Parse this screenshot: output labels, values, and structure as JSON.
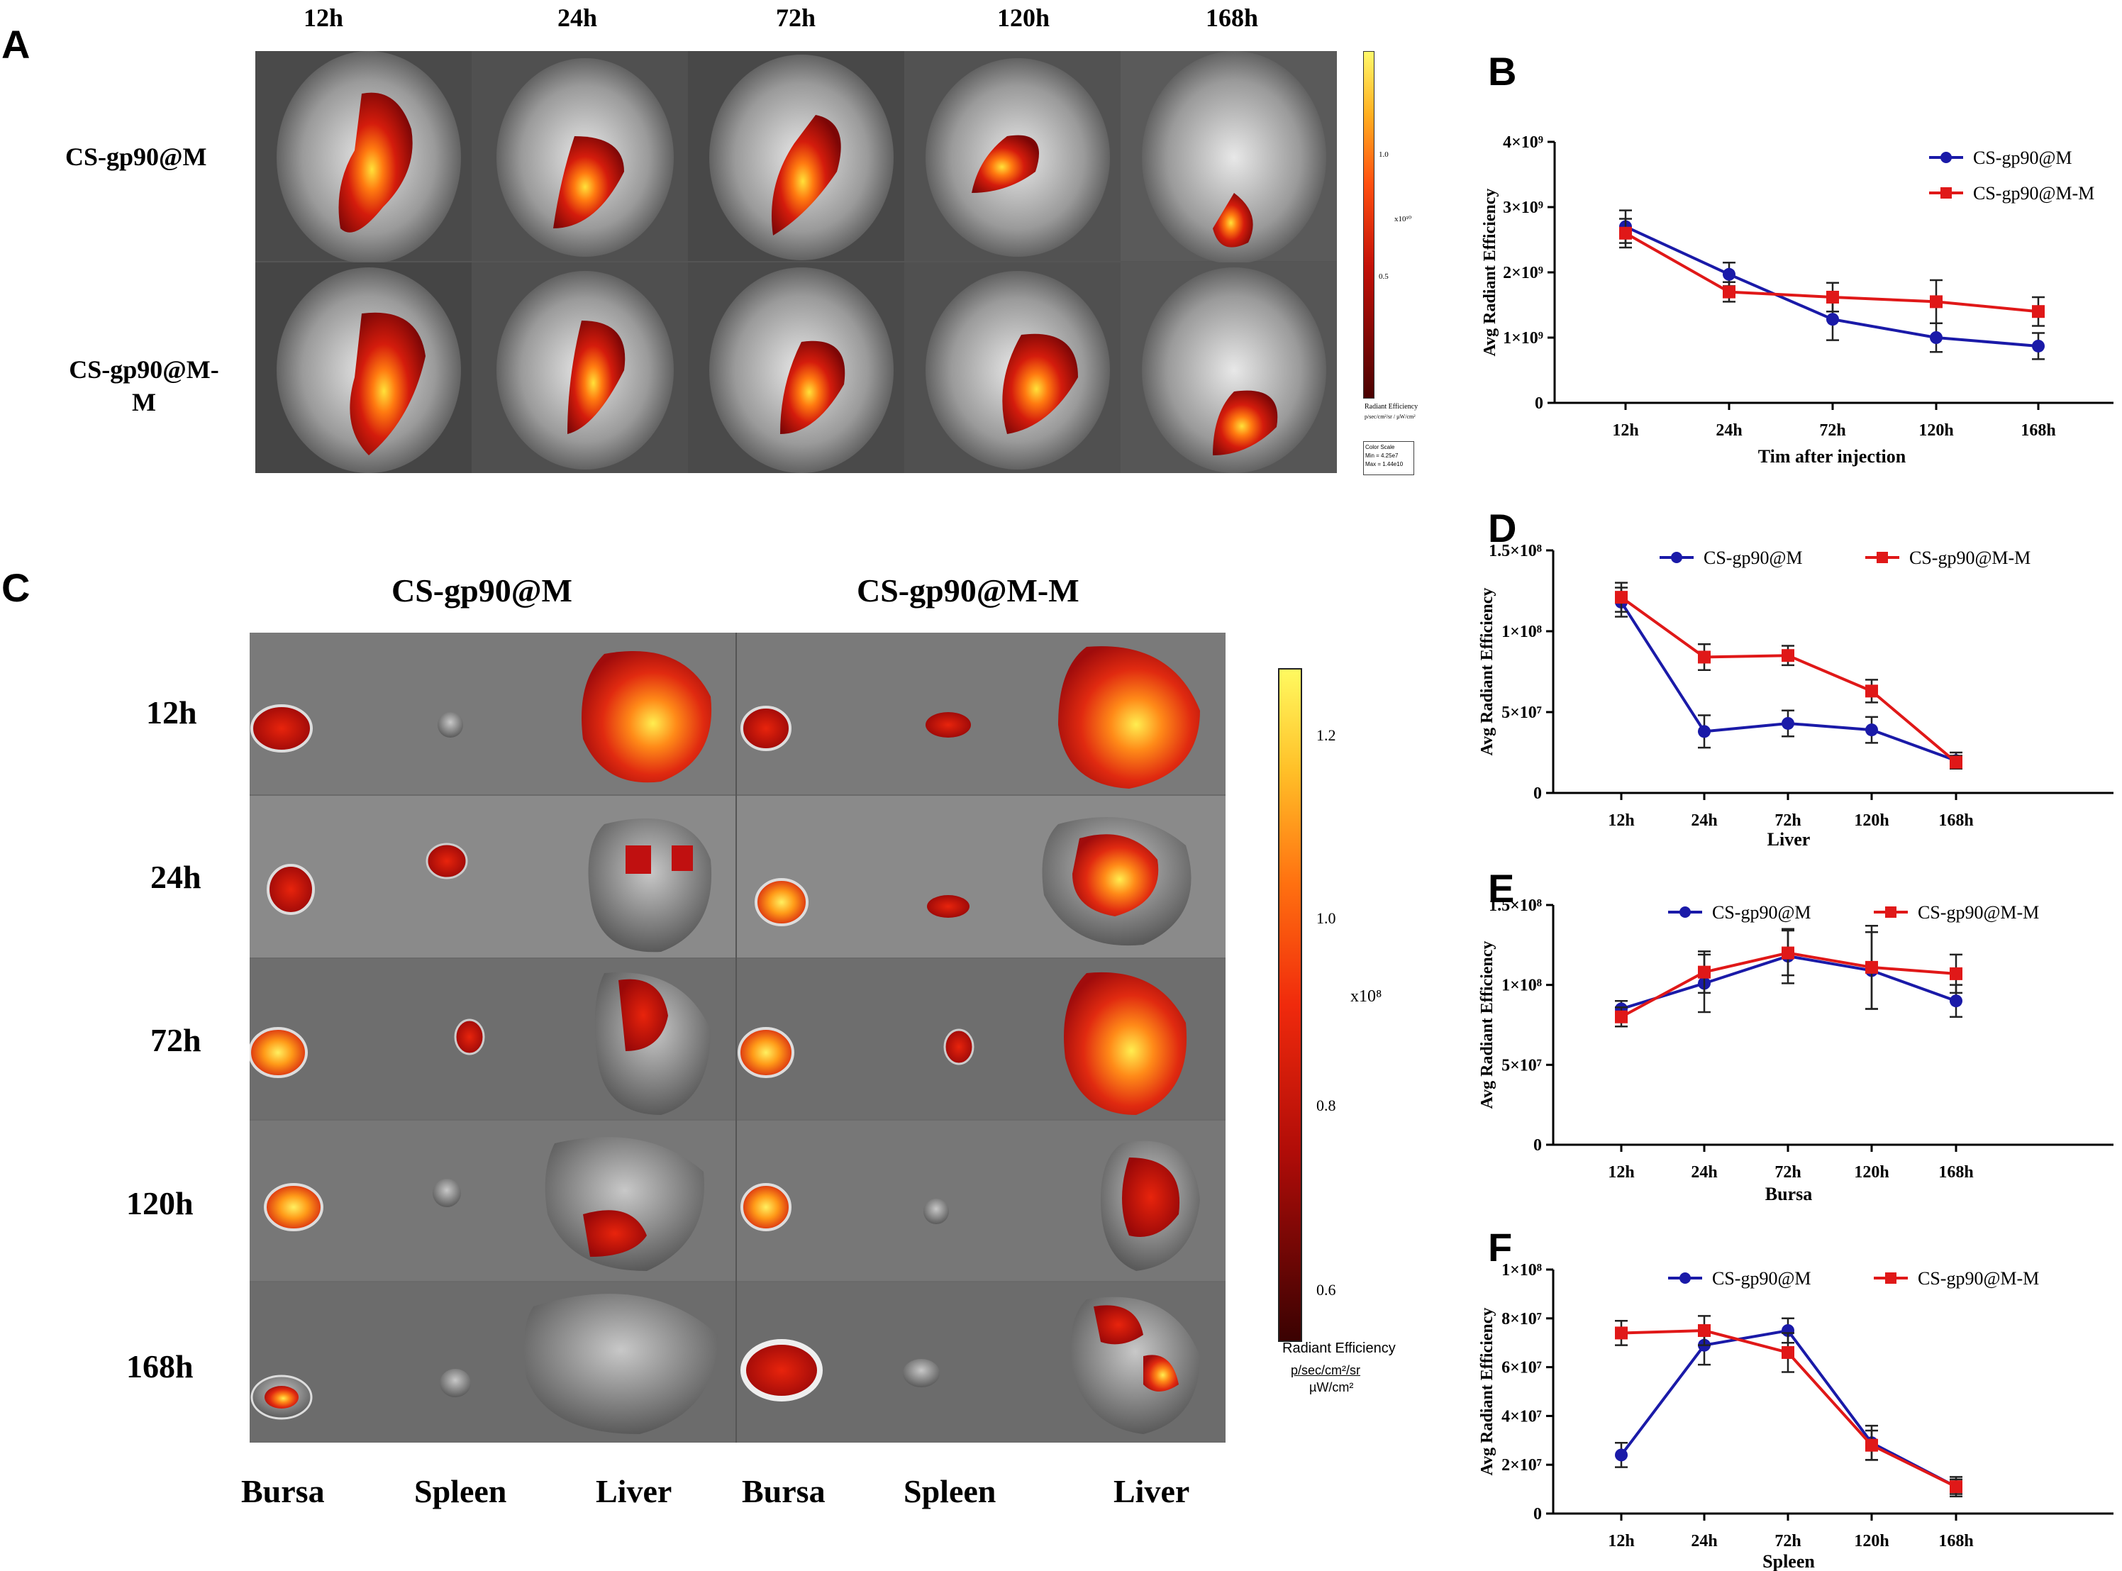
{
  "panels": {
    "A": "A",
    "B": "B",
    "C": "C",
    "D": "D",
    "E": "E",
    "F": "F"
  },
  "panel_a": {
    "times": [
      "12h",
      "24h",
      "72h",
      "120h",
      "168h"
    ],
    "rows": [
      "CS-gp90@M",
      "CS-gp90@M-M"
    ],
    "scale_ticks": [
      "1.0",
      "0.5"
    ],
    "scale_unit": "x10¹⁰",
    "scale_title": "Radiant Efficiency",
    "scale_units": "p/sec/cm²/sr / µW/cm²",
    "colorscale_box": [
      "Color Scale",
      "Min = 4.25e7",
      "Max = 1.44e10"
    ]
  },
  "panel_c": {
    "groups": [
      "CS-gp90@M",
      "CS-gp90@M-M"
    ],
    "times": [
      "12h",
      "24h",
      "72h",
      "120h",
      "168h"
    ],
    "organs": [
      "Bursa",
      "Spleen",
      "Liver",
      "Bursa",
      "Spleen",
      "Liver"
    ],
    "scale_ticks": [
      "1.2",
      "1.0",
      "0.8",
      "0.6"
    ],
    "scale_unit": "x10⁸",
    "scale_title": "Radiant Efficiency",
    "scale_units_num": "p/sec/cm²/sr",
    "scale_units_den": "µW/cm²"
  },
  "colors": {
    "series1": "#1a1aa8",
    "series2": "#e01818"
  },
  "chart_data": [
    {
      "id": "B",
      "type": "line",
      "categories": [
        "12h",
        "24h",
        "72h",
        "120h",
        "168h"
      ],
      "xlabel": "Tim after injection",
      "ylabel": "Avg Radiant Efficiency",
      "ylim": [
        0,
        4000000000.0
      ],
      "yticks": [
        {
          "v": 0,
          "label": "0"
        },
        {
          "v": 1000000000.0,
          "label": "1×10⁹"
        },
        {
          "v": 2000000000.0,
          "label": "2×10⁹"
        },
        {
          "v": 3000000000.0,
          "label": "3×10⁹"
        },
        {
          "v": 4000000000.0,
          "label": "4×10⁹"
        }
      ],
      "series": [
        {
          "name": "CS-gp90@M",
          "color": "#1a1aa8",
          "marker": "circle",
          "values": [
            2700000000.0,
            1970000000.0,
            1280000000.0,
            1000000000.0,
            870000000.0
          ],
          "errors": [
            250000000.0,
            180000000.0,
            320000000.0,
            220000000.0,
            200000000.0
          ]
        },
        {
          "name": "CS-gp90@M-M",
          "color": "#e01818",
          "marker": "square",
          "values": [
            2600000000.0,
            1700000000.0,
            1620000000.0,
            1550000000.0,
            1400000000.0
          ],
          "errors": [
            220000000.0,
            150000000.0,
            220000000.0,
            330000000.0,
            220000000.0
          ]
        }
      ],
      "legend": "top-right"
    },
    {
      "id": "D",
      "type": "line",
      "categories": [
        "12h",
        "24h",
        "72h",
        "120h",
        "168h"
      ],
      "xlabel": "Liver",
      "ylabel": "Avg Radiant Efficiency",
      "ylim": [
        0,
        150000000.0
      ],
      "yticks": [
        {
          "v": 0,
          "label": "0"
        },
        {
          "v": 50000000.0,
          "label": "5×10⁷"
        },
        {
          "v": 100000000.0,
          "label": "1×10⁸"
        },
        {
          "v": 150000000.0,
          "label": "1.5×10⁸"
        }
      ],
      "series": [
        {
          "name": "CS-gp90@M",
          "color": "#1a1aa8",
          "marker": "circle",
          "values": [
            118000000.0,
            38000000.0,
            43000000.0,
            39000000.0,
            20000000.0
          ],
          "errors": [
            9000000.0,
            10000000.0,
            8000000.0,
            8000000.0,
            5000000.0
          ]
        },
        {
          "name": "CS-gp90@M-M",
          "color": "#e01818",
          "marker": "square",
          "values": [
            121000000.0,
            84000000.0,
            85000000.0,
            63000000.0,
            19000000.0
          ],
          "errors": [
            9000000.0,
            8000000.0,
            6000000.0,
            7000000.0,
            4000000.0
          ]
        }
      ],
      "legend": "top"
    },
    {
      "id": "E",
      "type": "line",
      "categories": [
        "12h",
        "24h",
        "72h",
        "120h",
        "168h"
      ],
      "xlabel": "Bursa",
      "ylabel": "Avg Radiant Efficiency",
      "ylim": [
        0,
        150000000.0
      ],
      "yticks": [
        {
          "v": 0,
          "label": "0"
        },
        {
          "v": 50000000.0,
          "label": "5×10⁷"
        },
        {
          "v": 100000000.0,
          "label": "1×10⁸"
        },
        {
          "v": 150000000.0,
          "label": "1.5×10⁸"
        }
      ],
      "series": [
        {
          "name": "CS-gp90@M",
          "color": "#1a1aa8",
          "marker": "circle",
          "values": [
            85000000.0,
            101000000.0,
            118000000.0,
            109000000.0,
            90000000.0
          ],
          "errors": [
            5000000.0,
            18000000.0,
            17000000.0,
            24000000.0,
            10000000.0
          ]
        },
        {
          "name": "CS-gp90@M-M",
          "color": "#e01818",
          "marker": "square",
          "values": [
            80000000.0,
            108000000.0,
            120000000.0,
            111000000.0,
            107000000.0
          ],
          "errors": [
            6000000.0,
            13000000.0,
            14000000.0,
            26000000.0,
            12000000.0
          ]
        }
      ],
      "legend": "top"
    },
    {
      "id": "F",
      "type": "line",
      "categories": [
        "12h",
        "24h",
        "72h",
        "120h",
        "168h"
      ],
      "xlabel": "Spleen",
      "ylabel": "Avg Radiant Efficiency",
      "ylim": [
        0,
        100000000.0
      ],
      "yticks": [
        {
          "v": 0,
          "label": "0"
        },
        {
          "v": 20000000.0,
          "label": "2×10⁷"
        },
        {
          "v": 40000000.0,
          "label": "4×10⁷"
        },
        {
          "v": 60000000.0,
          "label": "6×10⁷"
        },
        {
          "v": 80000000.0,
          "label": "8×10⁷"
        },
        {
          "v": 100000000.0,
          "label": "1×10⁸"
        }
      ],
      "series": [
        {
          "name": "CS-gp90@M",
          "color": "#1a1aa8",
          "marker": "circle",
          "values": [
            24000000.0,
            69000000.0,
            75000000.0,
            29000000.0,
            11000000.0
          ],
          "errors": [
            5000000.0,
            8000000.0,
            5000000.0,
            7000000.0,
            4000000.0
          ]
        },
        {
          "name": "CS-gp90@M-M",
          "color": "#e01818",
          "marker": "square",
          "values": [
            74000000.0,
            75000000.0,
            66000000.0,
            28000000.0,
            11000000.0
          ],
          "errors": [
            5000000.0,
            6000000.0,
            8000000.0,
            6000000.0,
            3000000.0
          ]
        }
      ],
      "legend": "top"
    }
  ]
}
